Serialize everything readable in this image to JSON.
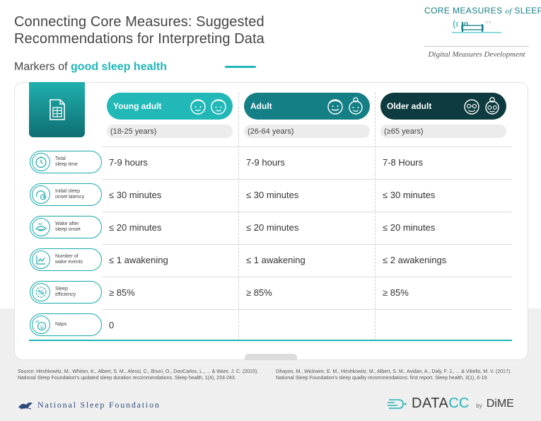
{
  "header": {
    "title_line1": "Connecting Core Measures: Suggested",
    "title_line2": "Recommendations for Interpreting Data",
    "subtitle_prefix": "Markers of ",
    "subtitle_highlight": "good sleep health"
  },
  "brand": {
    "name_part1": "CORE MEASURES ",
    "name_italic": "of",
    "name_part2": " SLEEP",
    "tagline": "Digital Measures Development",
    "icon": "sleep-bed-icon"
  },
  "colors": {
    "accent": "#20b5b8",
    "young_adult": "#22b8b8",
    "adult": "#157f86",
    "older_adult": "#0d3b3f"
  },
  "columns": [
    {
      "label": "Young adult",
      "age": "(18-25 years)"
    },
    {
      "label": "Adult",
      "age": "(26-64 years)"
    },
    {
      "label": "Older adult",
      "age": "(≥65 years)"
    }
  ],
  "rows": [
    {
      "icon": "clock-icon",
      "label_line1": "Total",
      "label_line2": "sleep time",
      "values": [
        "7-9 hours",
        "7-9 hours",
        "7-8 Hours"
      ]
    },
    {
      "icon": "sleep-onset-clock-icon",
      "label_line1": "Initial sleep",
      "label_line2": "onset latency",
      "values": [
        "≤ 30 minutes",
        "≤ 30 minutes",
        "≤ 30 minutes"
      ]
    },
    {
      "icon": "closed-eye-zz-icon",
      "label_line1": "Wake after",
      "label_line2": "sleep onset",
      "values": [
        "≤ 20 minutes",
        "≤ 20 minutes",
        "≤ 20 minutes"
      ]
    },
    {
      "icon": "wake-chart-icon",
      "label_line1": "Number of",
      "label_line2": "wake events",
      "values": [
        "≤ 1 awakening",
        "≤ 1 awakening",
        "≤ 2 awakenings"
      ]
    },
    {
      "icon": "percent-icon",
      "label_line1": "Sleep",
      "label_line2": "efficiency",
      "values": [
        "≥ 85%",
        "≥ 85%",
        "≥ 85%"
      ]
    },
    {
      "icon": "nap-face-icon",
      "label_line1": "Naps",
      "label_line2": "",
      "values": [
        "0",
        "",
        ""
      ]
    }
  ],
  "sources": {
    "left": "Source: Hirshkowitz, M., Whiton, K., Albert, S. M., Alessi, C., Bruni, O., DonCarlos, L., ... & Ware, J. C. (2015). National Sleep Foundation's updated sleep duration recommendations. Sleep health, 1(4), 233-243.",
    "right": "Ohayon, M., Wickwire, E. M., Hirshkowitz, M., Albert, S. M., Avidan, A., Daly, F. J., ... & Vitiello, M. V. (2017). National Sleep Foundation's sleep quality recommendations: first report. Sleep health, 3(1), 6-19."
  },
  "footer": {
    "nsf_name": "National Sleep Foundation",
    "datacc_main": "DATA",
    "datacc_accent": "CC",
    "by": "by",
    "dime": "DiME"
  }
}
